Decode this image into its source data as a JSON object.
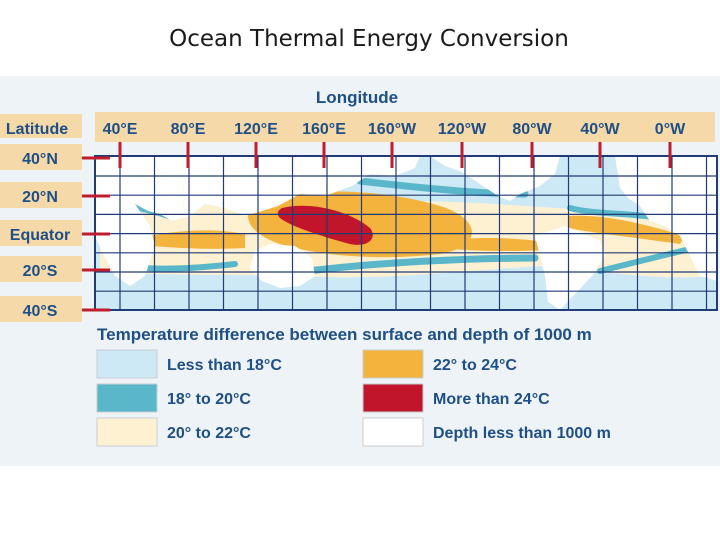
{
  "slide": {
    "title": "Ocean Thermal Energy Conversion"
  },
  "map": {
    "longitude_title": "Longitude",
    "latitude_title": "Latitude",
    "longitude_labels": [
      "40°E",
      "80°E",
      "120°E",
      "160°E",
      "160°W",
      "120°W",
      "80°W",
      "40°W",
      "0°W"
    ],
    "latitude_labels": [
      "40°N",
      "20°N",
      "Equator",
      "20°S",
      "40°S"
    ],
    "legend_title": "Temperature difference between surface and depth of 1000 m",
    "legend": [
      {
        "label": "Less than 18°C",
        "color": "#cde9f5"
      },
      {
        "label": "18° to 20°C",
        "color": "#5ab7c9"
      },
      {
        "label": "20° to 22°C",
        "color": "#fdf1d2"
      },
      {
        "label": "22° to 24°C",
        "color": "#f4b33c"
      },
      {
        "label": "More than 24°C",
        "color": "#c0152a"
      },
      {
        "label": "Depth less than 1000 m",
        "color": "#ffffff"
      }
    ]
  },
  "colors": {
    "header_band": "#f6d9a8",
    "axis_text": "#1e4f87",
    "grid": "#213a78",
    "ticks": "#c01d2c",
    "land": "#ffffff",
    "frame": "#e8eef4"
  }
}
